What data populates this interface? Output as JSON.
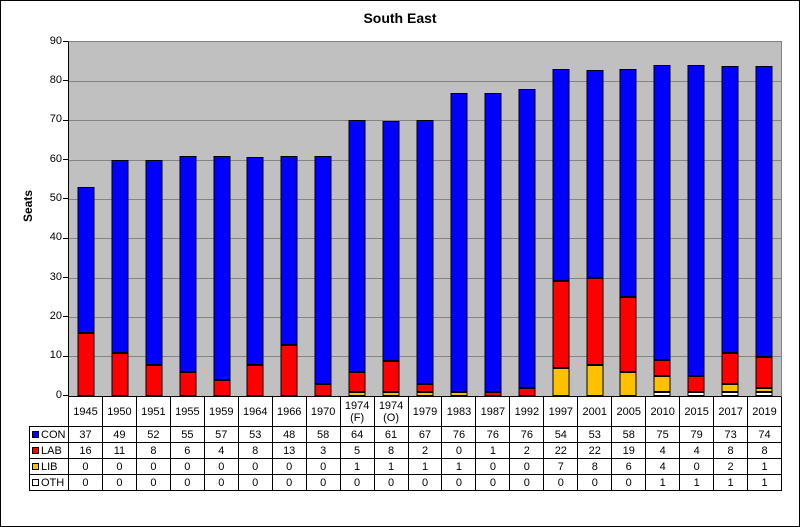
{
  "chart_data": {
    "type": "bar",
    "stacked": true,
    "title": "South East",
    "ylabel": "Seats",
    "xlabel": "",
    "ylim": [
      0,
      90
    ],
    "y_ticks": [
      0,
      10,
      20,
      30,
      40,
      50,
      60,
      70,
      80,
      90
    ],
    "grid": true,
    "plot_bg_color": "#c0c0c0",
    "gridline_color": "#848484",
    "bar_border_color": "#000000",
    "legend_position": "table-left",
    "categories": [
      "1945",
      "1950",
      "1951",
      "1955",
      "1959",
      "1964",
      "1966",
      "1970",
      "1974 (F)",
      "1974 (O)",
      "1979",
      "1983",
      "1987",
      "1992",
      "1997",
      "2001",
      "2005",
      "2010",
      "2015",
      "2017",
      "2019"
    ],
    "series": [
      {
        "name": "CON",
        "color": "#0000ff",
        "values": [
          37,
          49,
          52,
          55,
          57,
          53,
          48,
          58,
          64,
          61,
          67,
          76,
          76,
          76,
          54,
          53,
          58,
          75,
          79,
          73,
          74
        ]
      },
      {
        "name": "LAB",
        "color": "#ff0000",
        "values": [
          16,
          11,
          8,
          6,
          4,
          8,
          13,
          3,
          5,
          8,
          2,
          0,
          1,
          2,
          22,
          22,
          19,
          4,
          4,
          8,
          8
        ]
      },
      {
        "name": "LIB",
        "color": "#ffc000",
        "values": [
          0,
          0,
          0,
          0,
          0,
          0,
          0,
          0,
          1,
          1,
          1,
          1,
          0,
          0,
          7,
          8,
          6,
          4,
          0,
          2,
          1
        ]
      },
      {
        "name": "OTH",
        "color": "#ffffff",
        "values": [
          0,
          0,
          0,
          0,
          0,
          0,
          0,
          0,
          0,
          0,
          0,
          0,
          0,
          0,
          0,
          0,
          0,
          1,
          1,
          1,
          1
        ]
      }
    ],
    "stack_order_bottom_to_top": [
      "OTH",
      "LIB",
      "LAB",
      "CON"
    ]
  }
}
